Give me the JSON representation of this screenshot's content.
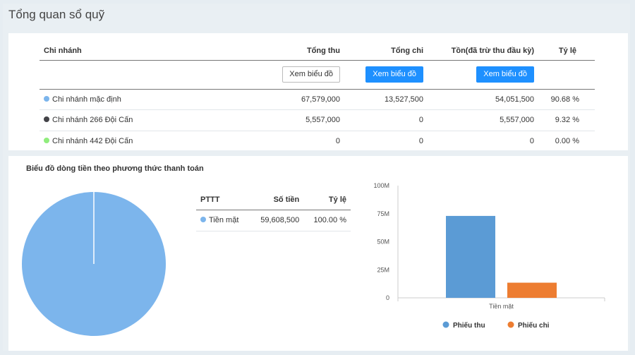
{
  "page_title": "Tổng quan sổ quỹ",
  "branch_table": {
    "headers": {
      "branch": "Chi nhánh",
      "total_in": "Tổng thu",
      "total_out": "Tổng chi",
      "balance": "Tồn(đã trừ thu đầu kỳ)",
      "ratio": "Tỷ lệ"
    },
    "chart_buttons": {
      "total_in": "Xem biểu đồ",
      "total_out": "Xem biểu đồ",
      "balance": "Xem biểu đồ"
    },
    "rows": [
      {
        "name": "Chi nhánh mặc định",
        "dot_color": "#7cb5ec",
        "total_in": "67,579,000",
        "total_out": "13,527,500",
        "balance": "54,051,500",
        "ratio": "90.68 %"
      },
      {
        "name": "Chi nhánh 266 Đội Cấn",
        "dot_color": "#434348",
        "total_in": "5,557,000",
        "total_out": "0",
        "balance": "5,557,000",
        "ratio": "9.32 %"
      },
      {
        "name": "Chi nhánh 442 Đội Cấn",
        "dot_color": "#90ed7d",
        "total_in": "0",
        "total_out": "0",
        "balance": "0",
        "ratio": "0.00 %"
      }
    ]
  },
  "cashflow_section": {
    "title": "Biểu đồ dòng tiền theo phương thức thanh toán",
    "pttt_table": {
      "headers": {
        "method": "PTTT",
        "amount": "Số tiền",
        "ratio": "Tỷ lệ"
      },
      "rows": [
        {
          "method": "Tiền mặt",
          "dot_color": "#7cb5ec",
          "amount": "59,608,500",
          "ratio": "100.00 %"
        }
      ]
    }
  },
  "chart_data": [
    {
      "type": "pie",
      "labels": [
        "Tiền mặt"
      ],
      "values": [
        100
      ],
      "colors": [
        "#7cb5ec"
      ]
    },
    {
      "type": "bar",
      "categories": [
        "Tiền mặt"
      ],
      "series": [
        {
          "name": "Phiếu thu",
          "values": [
            73
          ],
          "color": "#5b9bd5"
        },
        {
          "name": "Phiếu chi",
          "values": [
            13.5
          ],
          "color": "#ed7d31"
        }
      ],
      "yticks": [
        "0",
        "25M",
        "50M",
        "75M",
        "100M"
      ],
      "ylim": [
        0,
        100
      ],
      "grid": false,
      "legend": "bottom"
    }
  ]
}
